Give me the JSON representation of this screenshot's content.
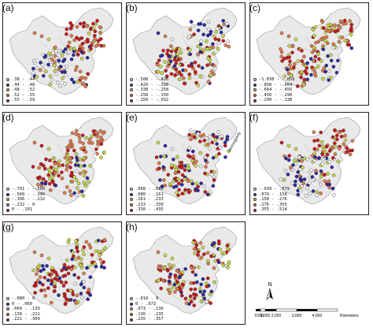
{
  "colors": {
    "c1": "#f4f4f4",
    "c2": "#2a2aa0",
    "c3": "#c8d84a",
    "c4": "#e07a4a",
    "c5": "#c8181a",
    "land": "#e9e9e9",
    "border": "#9a9a9a"
  },
  "panels": [
    {
      "label": "(a)",
      "legend": [
        ".38 - .44",
        ".44 - .48",
        ".48 - .52",
        ".52 - .55",
        ".55 - .59"
      ]
    },
    {
      "label": "(b)",
      "legend": [
        "-.508 - -.426",
        "-.426 - -.338",
        "-.338 - -.258",
        "-.258 - -.150",
        "-.150 - -.032"
      ]
    },
    {
      "label": "(c)",
      "legend": [
        "-1.038 - -.858",
        "-.858 - -.664",
        "-.664 - -.456",
        "-.456 - -.290",
        "-.290 - -.138"
      ]
    },
    {
      "label": "(d)",
      "legend": [
        "-.791 - -.560",
        "-.560 - -.396",
        "-.396 - -.232",
        "-.232 - 0",
        "0 - .101"
      ]
    },
    {
      "label": "(e)",
      "legend": [
        ".008 - .080",
        ".080 - .161",
        ".161 - .233",
        ".233 - .330",
        ".330 - .435"
      ],
      "annotation": "Heilongjiang"
    },
    {
      "label": "(f)",
      "legend": [
        "-.039 - .079",
        ".079 - .158",
        ".158 - .276",
        ".276 - .355",
        ".355 - .514"
      ]
    },
    {
      "label": "(g)",
      "legend": [
        "-.080 - 0",
        "0 - .060",
        ".060 - .139",
        ".139 - .221",
        ".221 - .309"
      ]
    },
    {
      "label": "(h)",
      "legend": [
        "-.019 - 0",
        "0 - .073",
        ".073 - .136",
        ".136 - .235",
        ".235 - .357"
      ]
    }
  ],
  "scale": {
    "north": "N",
    "ticks": [
      "0",
      "500",
      "1,000",
      "2,000",
      "3,000",
      "4,000"
    ],
    "unit": "Kilometers"
  }
}
